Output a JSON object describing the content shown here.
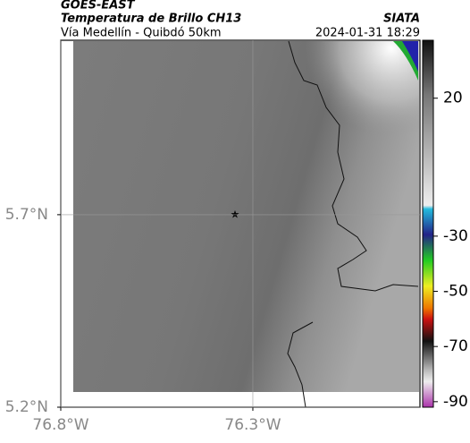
{
  "header": {
    "source": "GOES-EAST",
    "title": "Temperatura de Brillo CH13",
    "brand": "SIATA",
    "subtitle": "Vía Medellín - Quibdó 50km",
    "timestamp": "2024-01-31 18:29"
  },
  "map": {
    "xlim": [
      -76.8,
      -75.865
    ],
    "ylim": [
      5.2,
      6.153
    ],
    "xticks": [
      {
        "value": -76.8,
        "label": "76.8°W"
      },
      {
        "value": -76.3,
        "label": "76.3°W"
      }
    ],
    "yticks": [
      {
        "value": 5.2,
        "label": "5.2°N"
      },
      {
        "value": 5.7,
        "label": "5.7°N"
      }
    ],
    "grid": true
  },
  "colorbar": {
    "lim": [
      -92,
      41
    ],
    "ticks": [
      20,
      -30,
      -50,
      -70,
      -90
    ]
  }
}
